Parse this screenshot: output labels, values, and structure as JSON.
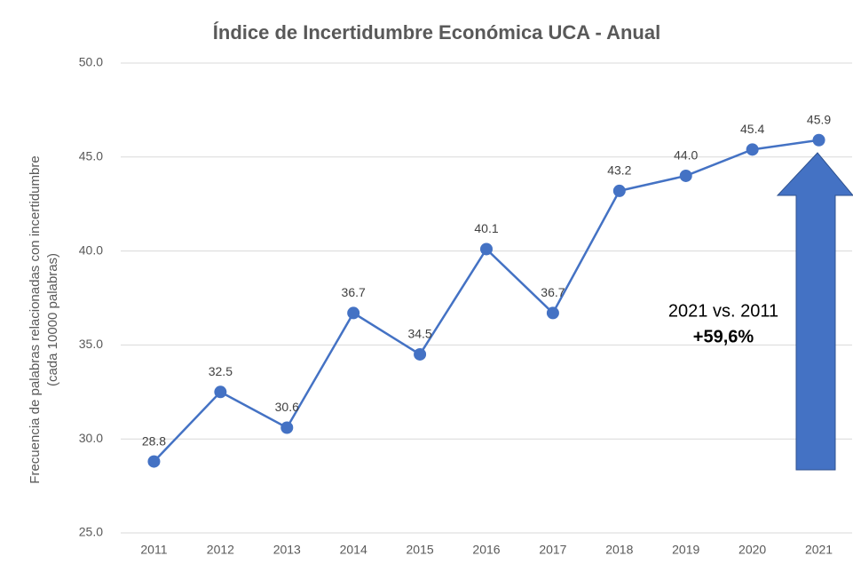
{
  "chart_data": {
    "type": "line",
    "title": "Índice de Incertidumbre Económica UCA - Anual",
    "y_label": [
      "Frecuencia de palabras relacionadas con incertidumbre",
      "(cada 10000 palabras)"
    ],
    "categories": [
      "2011",
      "2012",
      "2013",
      "2014",
      "2015",
      "2016",
      "2017",
      "2018",
      "2019",
      "2020",
      "2021"
    ],
    "series": [
      {
        "name": "Índice",
        "color": "#4472c4",
        "values": [
          28.8,
          32.5,
          30.6,
          36.7,
          34.5,
          40.1,
          36.7,
          43.2,
          44.0,
          45.4,
          45.9
        ],
        "value_labels": [
          "28.8",
          "32.5",
          "30.6",
          "36.7",
          "34.5",
          "40.1",
          "36.7",
          "43.2",
          "44.0",
          "45.4",
          "45.9"
        ]
      }
    ],
    "ylim": [
      25,
      50
    ],
    "yticks": [
      {
        "value": 25,
        "label": "25.0"
      },
      {
        "value": 30,
        "label": "30.0"
      },
      {
        "value": 35,
        "label": "35.0"
      },
      {
        "value": 40,
        "label": "40.0"
      },
      {
        "value": 45,
        "label": "45.0"
      },
      {
        "value": 50,
        "label": "50.0"
      }
    ],
    "grid": true,
    "annotations": [
      "2021 vs. 2011",
      "+59,6%"
    ]
  }
}
